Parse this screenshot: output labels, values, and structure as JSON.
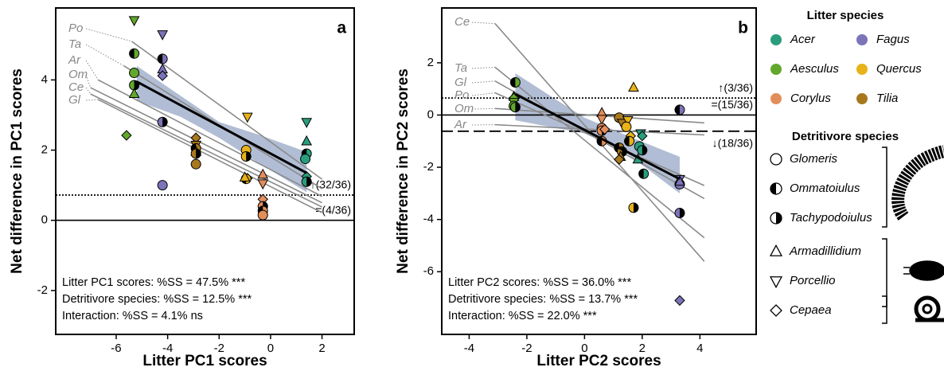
{
  "chart_data": [
    {
      "type": "scatter",
      "panel_label": "a",
      "x_label": "Litter PC1 scores",
      "y_label": "Net difference in PC1 scores",
      "xlim": [
        -8.35,
        3.25
      ],
      "ylim": [
        -3.25,
        6.05
      ],
      "xticks": [
        -6,
        -4,
        -2,
        0,
        2
      ],
      "yticks": [
        -2,
        0,
        2,
        4
      ],
      "points": [
        [
          -5.3,
          5.7,
          2,
          4
        ],
        [
          -5.3,
          4.75,
          2,
          1
        ],
        [
          -5.3,
          4.2,
          2,
          0
        ],
        [
          -5.3,
          3.85,
          2,
          2
        ],
        [
          -5.3,
          3.6,
          2,
          3
        ],
        [
          -5.6,
          2.42,
          2,
          5
        ],
        [
          -4.2,
          5.3,
          1,
          4
        ],
        [
          -4.2,
          4.6,
          1,
          1
        ],
        [
          -4.2,
          4.3,
          1,
          3
        ],
        [
          -4.2,
          4.12,
          1,
          5
        ],
        [
          -4.2,
          2.8,
          1,
          2
        ],
        [
          -4.2,
          1.0,
          1,
          0
        ],
        [
          -2.9,
          2.35,
          5,
          5
        ],
        [
          -2.9,
          2.15,
          5,
          4
        ],
        [
          -2.9,
          2.05,
          5,
          1
        ],
        [
          -2.9,
          1.95,
          5,
          3
        ],
        [
          -2.9,
          1.9,
          5,
          2
        ],
        [
          -2.9,
          1.6,
          5,
          0
        ],
        [
          -0.9,
          2.95,
          3,
          4
        ],
        [
          -0.95,
          2.0,
          3,
          0
        ],
        [
          -0.95,
          1.82,
          3,
          2
        ],
        [
          -0.9,
          1.2,
          3,
          5
        ],
        [
          -0.95,
          1.18,
          3,
          1
        ],
        [
          -1.0,
          1.22,
          3,
          3
        ],
        [
          -0.3,
          1.3,
          4,
          3
        ],
        [
          -0.3,
          1.05,
          4,
          4
        ],
        [
          -0.3,
          0.6,
          4,
          5
        ],
        [
          -0.3,
          0.4,
          4,
          2
        ],
        [
          -0.3,
          0.27,
          4,
          1
        ],
        [
          -0.3,
          0.15,
          4,
          0
        ],
        [
          1.4,
          2.8,
          0,
          4
        ],
        [
          1.4,
          2.25,
          0,
          3
        ],
        [
          1.4,
          1.9,
          0,
          1
        ],
        [
          1.35,
          1.75,
          0,
          0
        ],
        [
          1.4,
          1.25,
          0,
          5
        ],
        [
          1.4,
          1.1,
          0,
          2
        ]
      ],
      "fits": [
        {
          "label": "Po",
          "x": [
            -5.4,
            2
          ],
          "y": [
            5.1,
            1.17
          ]
        },
        {
          "label": "Ta",
          "x": [
            -5.7,
            2
          ],
          "y": [
            4.4,
            0.9
          ]
        },
        {
          "label": "Ar",
          "x": [
            -6.7,
            2
          ],
          "y": [
            4.0,
            0.68
          ]
        },
        {
          "label": "Om",
          "x": [
            -7.0,
            2
          ],
          "y": [
            3.78,
            0.5
          ]
        },
        {
          "label": "Ce",
          "x": [
            -7.0,
            2
          ],
          "y": [
            3.6,
            0.38
          ]
        },
        {
          "label": "Gl",
          "x": [
            -6.7,
            2
          ],
          "y": [
            3.44,
            0.22
          ]
        }
      ],
      "main_fit": {
        "x": [
          -5.2,
          1.4
        ],
        "y": [
          3.95,
          1.35
        ]
      },
      "band": {
        "x": [
          -5.2,
          -3.5,
          -2,
          -0.5,
          1.4
        ],
        "lower": [
          3.4,
          2.95,
          2.35,
          1.65,
          0.8
        ],
        "upper": [
          4.4,
          3.55,
          2.8,
          2.45,
          1.95
        ]
      },
      "ref_lines": [
        {
          "y": 0.72,
          "style": "dotted",
          "label": "↑(32/36)"
        },
        {
          "y": 0,
          "style": "solid",
          "label": "=(4/36)"
        }
      ],
      "stats": [
        "Litter PC1 scores: %SS = 47.5% ***",
        "Detritivore species: %SS = 12.5% ***",
        "Interaction: %SS = 4.1% ns"
      ]
    },
    {
      "type": "scatter",
      "panel_label": "b",
      "x_label": "Litter PC2 scores",
      "y_label": "Net difference in PC2 scores",
      "xlim": [
        -4.95,
        5.95
      ],
      "ylim": [
        -8.4,
        4.1
      ],
      "xticks": [
        -4,
        -2,
        0,
        2,
        4
      ],
      "yticks": [
        -6,
        -4,
        -2,
        0,
        2
      ],
      "points": [
        [
          -2.4,
          1.25,
          2,
          1
        ],
        [
          -2.45,
          0.7,
          2,
          3
        ],
        [
          -2.45,
          0.65,
          2,
          5
        ],
        [
          -2.45,
          0.5,
          2,
          4
        ],
        [
          -2.45,
          0.35,
          2,
          0
        ],
        [
          -2.4,
          0.3,
          2,
          2
        ],
        [
          0.6,
          0.08,
          4,
          3
        ],
        [
          0.6,
          -0.15,
          4,
          4
        ],
        [
          0.6,
          -0.5,
          4,
          0
        ],
        [
          0.6,
          -0.6,
          4,
          2
        ],
        [
          0.6,
          -1.0,
          4,
          1
        ],
        [
          0.7,
          -0.55,
          4,
          5
        ],
        [
          1.2,
          -0.1,
          5,
          0
        ],
        [
          1.3,
          -0.3,
          5,
          4
        ],
        [
          1.2,
          -1.25,
          5,
          1
        ],
        [
          1.3,
          -1.4,
          5,
          2
        ],
        [
          1.25,
          -1.6,
          5,
          3
        ],
        [
          1.2,
          -1.7,
          5,
          5
        ],
        [
          1.7,
          1.05,
          3,
          3
        ],
        [
          1.6,
          -0.8,
          3,
          5
        ],
        [
          1.5,
          -0.2,
          3,
          4
        ],
        [
          1.45,
          -0.45,
          3,
          0
        ],
        [
          1.55,
          -1.0,
          3,
          1
        ],
        [
          1.7,
          -3.55,
          3,
          2
        ],
        [
          1.95,
          -0.7,
          0,
          4
        ],
        [
          2.0,
          -0.8,
          0,
          5
        ],
        [
          1.9,
          -1.2,
          0,
          0
        ],
        [
          2.0,
          -1.35,
          0,
          2
        ],
        [
          1.85,
          -1.7,
          0,
          3
        ],
        [
          2.05,
          -2.25,
          0,
          1
        ],
        [
          3.3,
          0.2,
          1,
          1
        ],
        [
          3.3,
          -2.45,
          1,
          4
        ],
        [
          3.3,
          -2.65,
          1,
          0
        ],
        [
          3.3,
          -2.55,
          1,
          3
        ],
        [
          3.3,
          -3.75,
          1,
          2
        ],
        [
          3.3,
          -7.1,
          1,
          5
        ]
      ],
      "fits": [
        {
          "label": "Ce",
          "x": [
            -3.1,
            4.15
          ],
          "y": [
            3.5,
            -5.6
          ]
        },
        {
          "label": "Ta",
          "x": [
            -3.1,
            4.15
          ],
          "y": [
            1.83,
            -4.7
          ]
        },
        {
          "label": "Gl",
          "x": [
            -3.1,
            4.15
          ],
          "y": [
            1.3,
            -3.2
          ]
        },
        {
          "label": "Po",
          "x": [
            -3.1,
            4.15
          ],
          "y": [
            0.85,
            -2.7
          ]
        },
        {
          "label": "Om",
          "x": [
            -3.1,
            4.15
          ],
          "y": [
            0.25,
            -0.3
          ]
        },
        {
          "label": "Ar",
          "x": [
            -3.1,
            4.15
          ],
          "y": [
            -0.37,
            -0.76
          ]
        }
      ],
      "main_fit": {
        "x": [
          -2.4,
          3.3
        ],
        "y": [
          0.8,
          -2.45
        ]
      },
      "band": {
        "x": [
          -2.4,
          -1,
          0,
          1.5,
          3.3
        ],
        "lower": [
          -0.2,
          -0.5,
          -0.7,
          -1.5,
          -3.0
        ],
        "upper": [
          1.6,
          0.6,
          -0.1,
          -0.8,
          -1.6
        ]
      },
      "ref_lines": [
        {
          "y": 0.65,
          "style": "dotted",
          "label": "↑(3/36)"
        },
        {
          "y": 0,
          "style": "solid",
          "label": "=(15/36)"
        },
        {
          "y": -0.62,
          "style": "dashed",
          "label": "↓(18/36)"
        }
      ],
      "stats": [
        "Litter PC2 scores: %SS = 36.0% ***",
        "Detritivore species: %SS = 13.7% ***",
        "Interaction: %SS = 22.0% ***"
      ]
    }
  ],
  "legend": {
    "litter_title": "Litter species",
    "litter": [
      {
        "name": "Acer",
        "color": "#2a9d7c"
      },
      {
        "name": "Fagus",
        "color": "#7b74b8"
      },
      {
        "name": "Aesculus",
        "color": "#62a82c"
      },
      {
        "name": "Quercus",
        "color": "#e8b21a"
      },
      {
        "name": "Corylus",
        "color": "#e38e5a"
      },
      {
        "name": "Tilia",
        "color": "#a8781f"
      }
    ],
    "detritivore_title": "Detritivore species",
    "detritivores": [
      "Glomeris",
      "Ommatoiulus",
      "Tachypodoiulus",
      "Armadillidium",
      "Porcellio",
      "Cepaea"
    ]
  }
}
